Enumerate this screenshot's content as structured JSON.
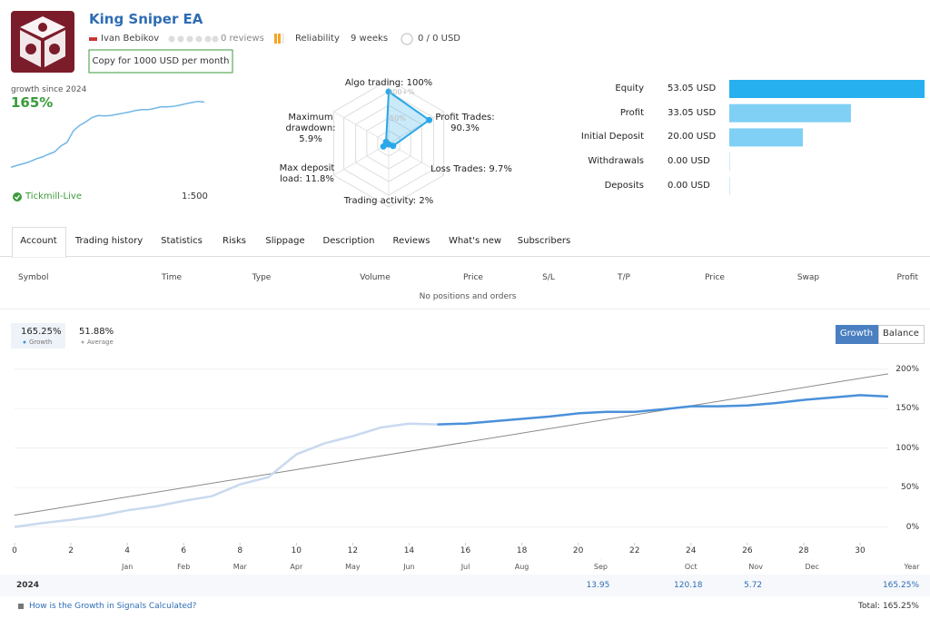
{
  "header": {
    "title": "King Sniper EA",
    "author": "Ivan Bebikov",
    "reviews": "0 reviews",
    "reliability": "Reliability",
    "weeks": "9 weeks",
    "subscribers": "0 / 0 USD",
    "copy_button": "Copy for 1000 USD per month"
  },
  "summary": {
    "growth_label": "growth since 2024",
    "growth_value": "165%",
    "broker": "Tickmill-Live",
    "leverage": "1:500"
  },
  "radar": {
    "axes": [
      {
        "label": "Algo trading: 100%",
        "value": 100
      },
      {
        "label": "Profit Trades: 90.3%",
        "value": 90.3
      },
      {
        "label": "Loss Trades: 9.7%",
        "value": 9.7
      },
      {
        "label": "Trading activity: 2%",
        "value": 2
      },
      {
        "label": "Max deposit load: 11.8%",
        "value": 11.8
      },
      {
        "label": "Maximum drawdown: 5.9%",
        "value": 5.9
      }
    ],
    "ring_labels": [
      "100+%",
      "50%"
    ],
    "color": "#2aa7e8"
  },
  "balance_bars": {
    "labels": [
      "Equity",
      "Profit",
      "Initial Deposit",
      "Withdrawals",
      "Deposits"
    ],
    "values": [
      53.05,
      33.05,
      20.0,
      0.0,
      0.0
    ],
    "value_labels": [
      "53.05 USD",
      "33.05 USD",
      "20.00 USD",
      "0.00 USD",
      "0.00 USD"
    ],
    "colors": [
      "#27b0ef",
      "#7fd0f4",
      "#7fd0f4",
      "#7fd0f4",
      "#7fd0f4"
    ]
  },
  "tabs": [
    "Account",
    "Trading history",
    "Statistics",
    "Risks",
    "Slippage",
    "Description",
    "Reviews",
    "What's new",
    "Subscribers"
  ],
  "active_tab": 0,
  "positions_table": {
    "columns": [
      "Symbol",
      "Time",
      "Type",
      "Volume",
      "Price",
      "S/L",
      "T/P",
      "Price",
      "Swap",
      "Profit"
    ],
    "empty_message": "No positions and orders"
  },
  "view_buttons": [
    "Growth",
    "Balance"
  ],
  "chart_data": {
    "type": "line",
    "x": [
      0,
      1,
      2,
      3,
      4,
      5,
      6,
      7,
      8,
      9,
      10,
      11,
      12,
      13,
      14,
      15,
      16,
      17,
      18,
      19,
      20,
      21,
      22,
      23,
      24,
      25,
      26,
      27,
      28,
      29,
      30,
      31
    ],
    "series": [
      {
        "name": "Growth",
        "legend_value": "165.25%",
        "color": "#4a90d9",
        "faded_color": "#c9d9ef",
        "highlight_from": 15,
        "values": [
          0,
          5,
          9,
          14,
          21,
          26,
          33,
          39,
          54,
          63,
          92,
          106,
          115,
          126,
          131,
          130,
          131,
          134,
          137,
          140,
          144,
          146,
          146,
          149,
          153,
          153,
          154,
          157,
          161,
          164,
          167,
          165.25
        ]
      },
      {
        "name": "Average",
        "legend_value": "51.88%",
        "color": "#8a8a8a",
        "x": [
          0,
          31
        ],
        "values": [
          15,
          194
        ]
      }
    ],
    "xlim": [
      0,
      31
    ],
    "ylim": [
      -20,
      210
    ],
    "xticks": [
      0,
      2,
      4,
      6,
      8,
      10,
      12,
      14,
      16,
      18,
      20,
      22,
      24,
      26,
      28,
      30
    ],
    "month_ticks": [
      {
        "value": 4,
        "label": "Jan"
      },
      {
        "value": 6,
        "label": "Feb"
      },
      {
        "value": 8,
        "label": "Mar"
      },
      {
        "value": 10,
        "label": "Apr"
      },
      {
        "value": 12,
        "label": "May"
      },
      {
        "value": 14,
        "label": "Jun"
      },
      {
        "value": 16,
        "label": "Jul"
      },
      {
        "value": 18,
        "label": "Aug"
      },
      {
        "value": 20.8,
        "label": "Sep"
      },
      {
        "value": 24,
        "label": "Oct"
      },
      {
        "value": 26.3,
        "label": "Nov"
      },
      {
        "value": 28.3,
        "label": "Dec"
      }
    ],
    "xlabel": "Year",
    "yticks": [
      {
        "value": 0,
        "label": "0%"
      },
      {
        "value": 50,
        "label": "50%"
      },
      {
        "value": 100,
        "label": "100%"
      },
      {
        "value": 150,
        "label": "150%"
      },
      {
        "value": 200,
        "label": "200%"
      }
    ],
    "grid": true
  },
  "footer": {
    "year": "2024",
    "monthly_values": [
      null,
      null,
      null,
      null,
      null,
      null,
      null,
      null,
      13.95,
      120.18,
      5.72,
      null
    ],
    "year_total": "165.25%",
    "help_link": "How is the Growth in Signals Calculated?",
    "total": "Total: 165.25%"
  }
}
